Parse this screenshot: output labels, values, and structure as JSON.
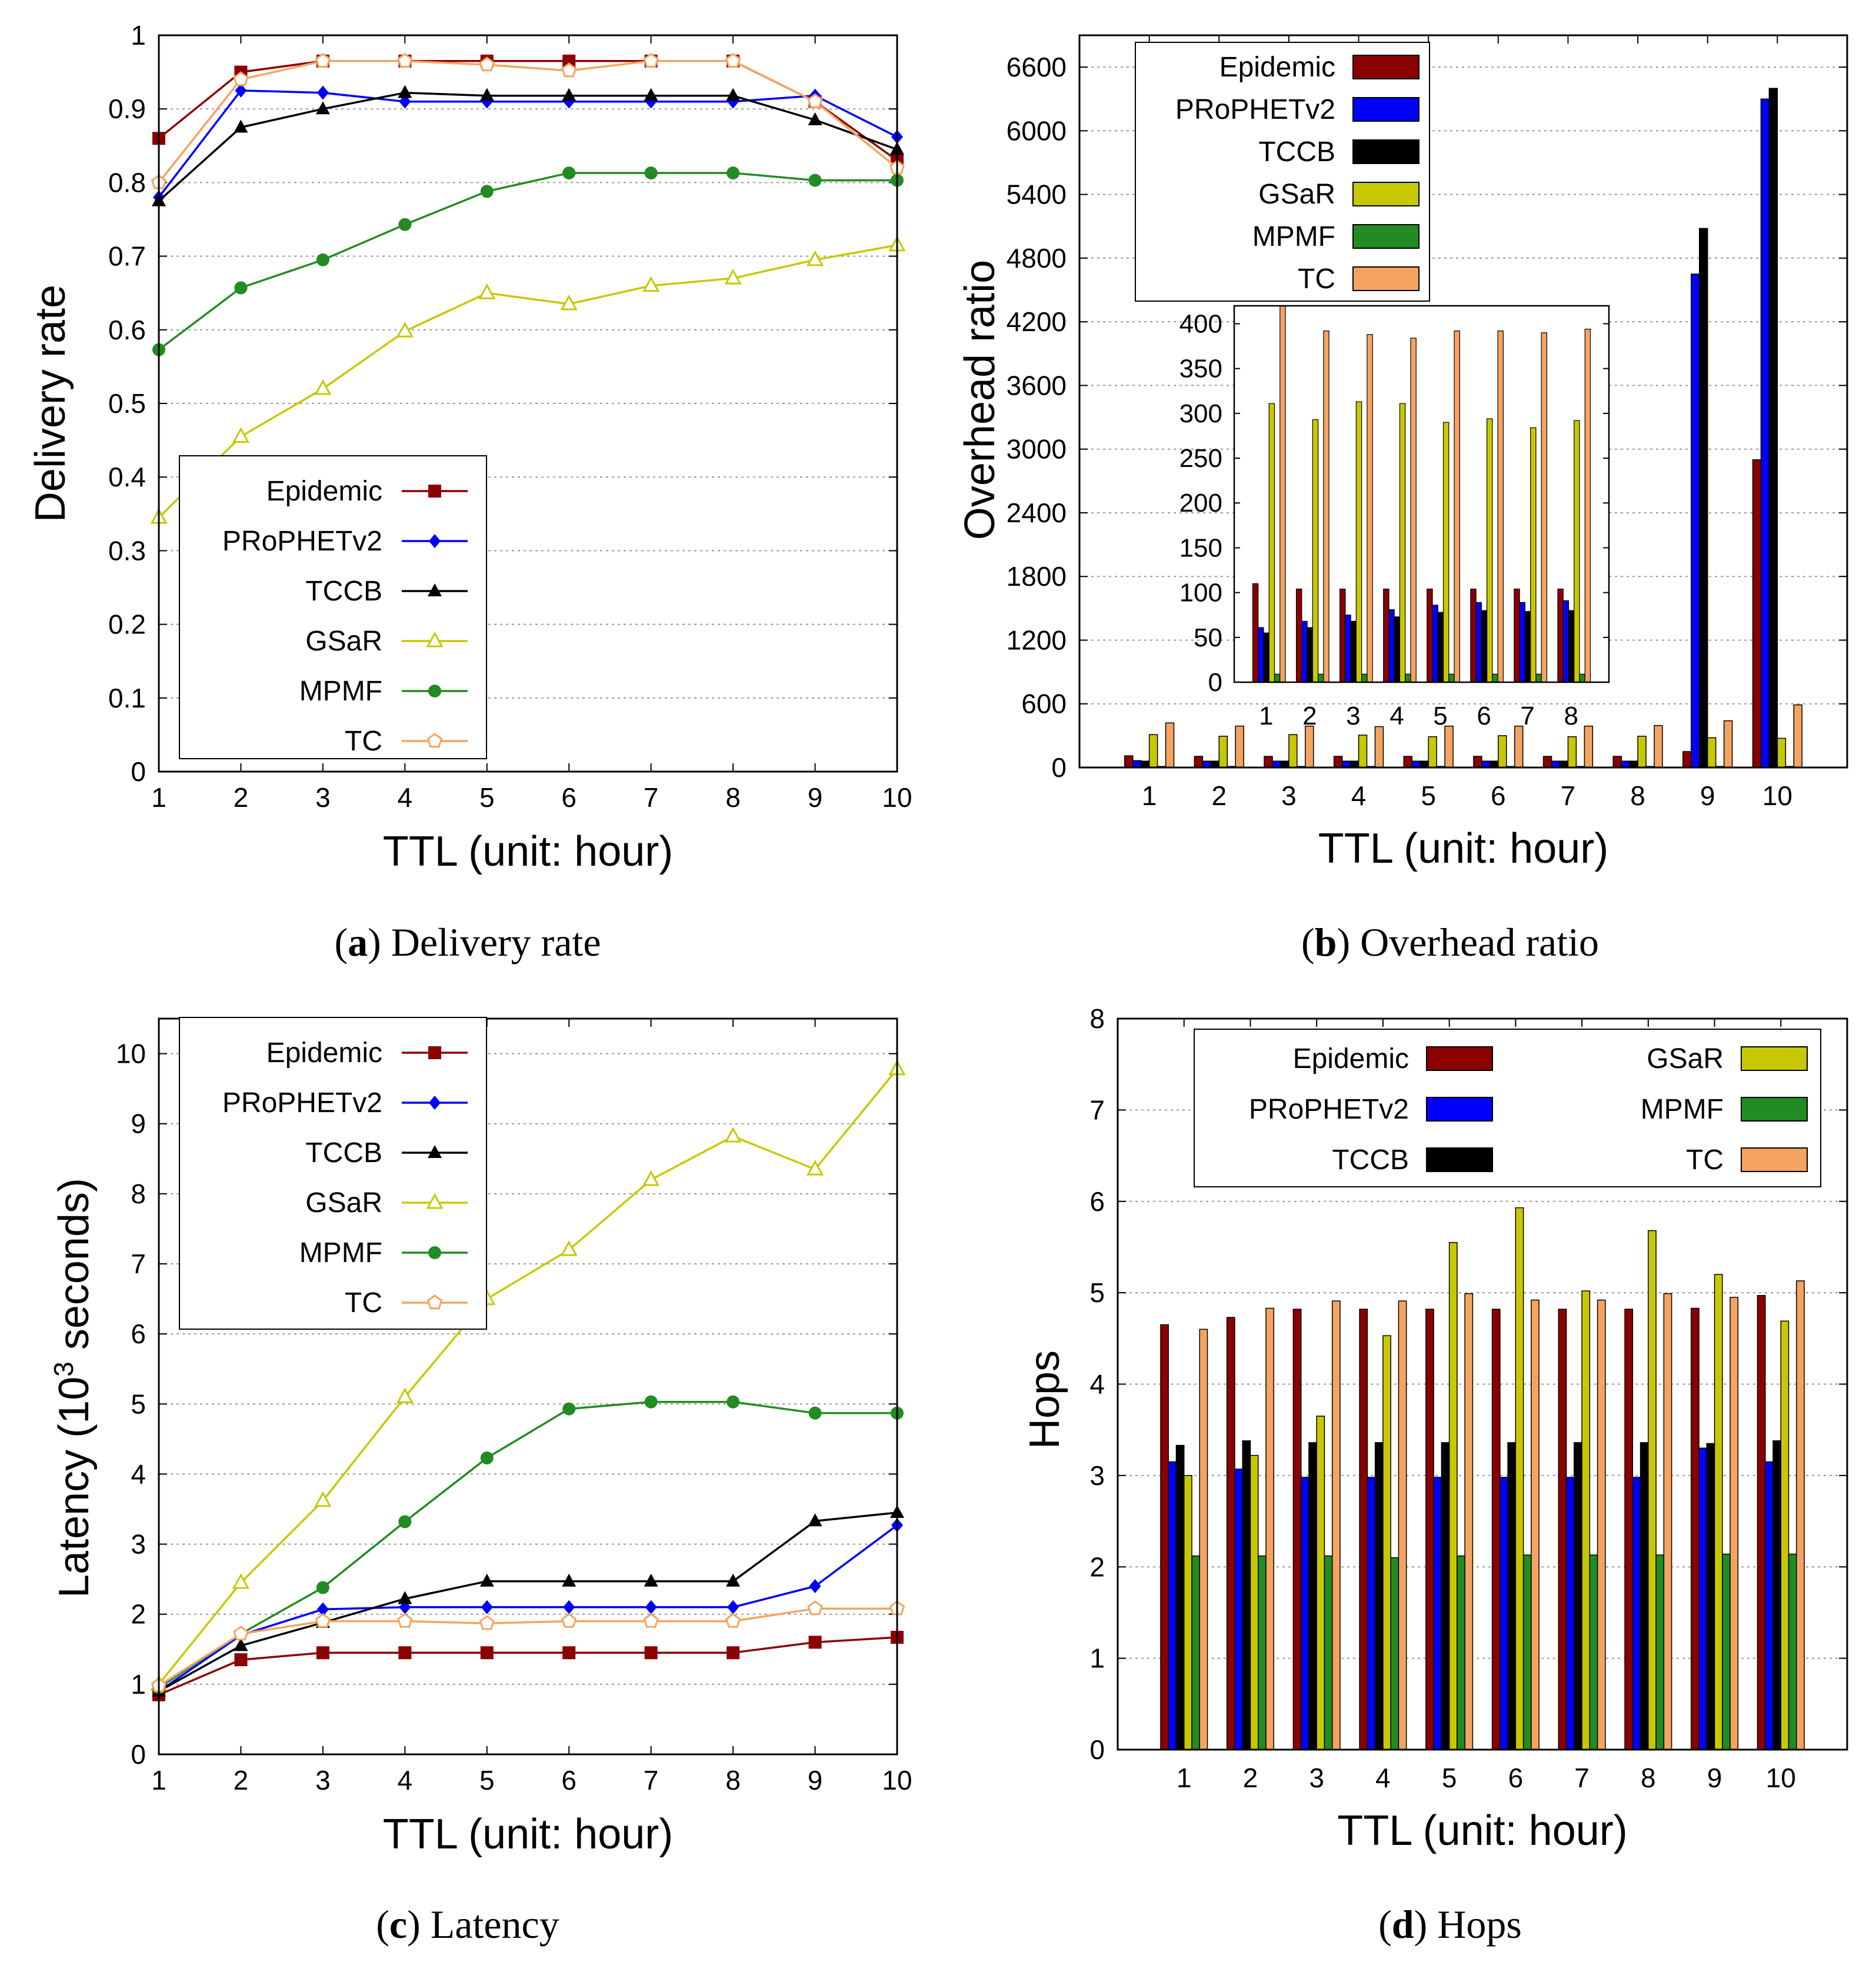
{
  "colors": {
    "Epidemic": "#8b0000",
    "PRoPHETv2": "#0000ff",
    "TCCB": "#000000",
    "GSaR": "#c8c800",
    "MPMF": "#228b22",
    "TC": "#f4a460"
  },
  "chart_data": [
    {
      "id": "a",
      "type": "line",
      "caption_letter": "a",
      "caption_text": "Delivery rate",
      "xlabel": "TTL (unit: hour)",
      "ylabel": "Delivery rate",
      "x": [
        1,
        2,
        3,
        4,
        5,
        6,
        7,
        8,
        9,
        10
      ],
      "xlim": [
        1,
        10
      ],
      "ylim": [
        0,
        1
      ],
      "yticks": [
        0,
        0.1,
        0.2,
        0.3,
        0.4,
        0.5,
        0.6,
        0.7,
        0.8,
        0.9,
        1
      ],
      "ytick_labels": [
        "0",
        "0.1",
        "0.2",
        "0.3",
        "0.4",
        "0.5",
        "0.6",
        "0.7",
        "0.8",
        "0.9",
        "1"
      ],
      "legend_position": "bottom-left",
      "series": [
        {
          "name": "Epidemic",
          "marker": "square",
          "values": [
            0.86,
            0.95,
            0.965,
            0.965,
            0.965,
            0.965,
            0.965,
            0.965,
            0.91,
            0.83
          ]
        },
        {
          "name": "PRoPHETv2",
          "marker": "diamond",
          "values": [
            0.78,
            0.925,
            0.922,
            0.91,
            0.91,
            0.91,
            0.91,
            0.91,
            0.918,
            0.862
          ]
        },
        {
          "name": "TCCB",
          "marker": "triangle",
          "values": [
            0.775,
            0.875,
            0.9,
            0.922,
            0.918,
            0.918,
            0.918,
            0.918,
            0.885,
            0.845
          ]
        },
        {
          "name": "GSaR",
          "marker": "triangle-open",
          "values": [
            0.345,
            0.455,
            0.52,
            0.598,
            0.65,
            0.635,
            0.66,
            0.67,
            0.695,
            0.715
          ]
        },
        {
          "name": "MPMF",
          "marker": "circle",
          "values": [
            0.573,
            0.657,
            0.695,
            0.743,
            0.788,
            0.813,
            0.813,
            0.813,
            0.803,
            0.803
          ]
        },
        {
          "name": "TC",
          "marker": "pentagon-open",
          "values": [
            0.8,
            0.94,
            0.965,
            0.965,
            0.96,
            0.952,
            0.965,
            0.965,
            0.91,
            0.82
          ]
        }
      ]
    },
    {
      "id": "b",
      "type": "bar",
      "caption_letter": "b",
      "caption_text": "Overhead ratio",
      "xlabel": "TTL (unit: hour)",
      "ylabel": "Overhead ratio",
      "categories": [
        "1",
        "2",
        "3",
        "4",
        "5",
        "6",
        "7",
        "8",
        "9",
        "10"
      ],
      "ylim": [
        0,
        6900
      ],
      "yticks": [
        0,
        600,
        1200,
        1800,
        2400,
        3000,
        3600,
        4200,
        4800,
        5400,
        6000,
        6600
      ],
      "ytick_labels": [
        "0",
        "600",
        "1200",
        "1800",
        "2400",
        "3000",
        "3600",
        "4200",
        "4800",
        "5400",
        "6000",
        "6600"
      ],
      "legend_position": "top-left",
      "series": [
        {
          "name": "Epidemic",
          "values": [
            110,
            105,
            105,
            105,
            105,
            105,
            105,
            105,
            150,
            2900
          ]
        },
        {
          "name": "PRoPHETv2",
          "values": [
            65,
            60,
            60,
            60,
            60,
            60,
            60,
            60,
            4650,
            6300
          ]
        },
        {
          "name": "TCCB",
          "values": [
            60,
            60,
            60,
            60,
            60,
            60,
            60,
            60,
            5080,
            6400
          ]
        },
        {
          "name": "GSaR",
          "values": [
            310,
            295,
            310,
            305,
            290,
            300,
            290,
            295,
            280,
            275
          ]
        },
        {
          "name": "MPMF",
          "values": [
            10,
            10,
            10,
            10,
            10,
            10,
            10,
            10,
            10,
            10
          ]
        },
        {
          "name": "TC",
          "values": [
            420,
            390,
            390,
            385,
            390,
            390,
            390,
            395,
            440,
            590
          ]
        }
      ],
      "inset": {
        "categories": [
          "1",
          "2",
          "3",
          "4",
          "5",
          "6",
          "7",
          "8"
        ],
        "ylim": [
          0,
          420
        ],
        "yticks": [
          0,
          50,
          100,
          150,
          200,
          250,
          300,
          350,
          400
        ],
        "ytick_labels": [
          "0",
          "50",
          "100",
          "150",
          "200",
          "250",
          "300",
          "350",
          "400"
        ],
        "series": [
          {
            "name": "Epidemic",
            "values": [
              110,
              104,
              104,
              104,
              104,
              104,
              104,
              104
            ]
          },
          {
            "name": "PRoPHETv2",
            "values": [
              61,
              68,
              75,
              81,
              86,
              89,
              89,
              91
            ]
          },
          {
            "name": "TCCB",
            "values": [
              55,
              61,
              68,
              73,
              78,
              80,
              79,
              80
            ]
          },
          {
            "name": "GSaR",
            "values": [
              311,
              293,
              313,
              311,
              290,
              294,
              284,
              292
            ]
          },
          {
            "name": "MPMF",
            "values": [
              9,
              9,
              9,
              9,
              9,
              9,
              9,
              9
            ]
          },
          {
            "name": "TC",
            "values": [
              420,
              392,
              388,
              384,
              392,
              392,
              390,
              394
            ]
          }
        ]
      }
    },
    {
      "id": "c",
      "type": "line",
      "caption_letter": "c",
      "caption_text": "Latency",
      "xlabel": "TTL (unit: hour)",
      "ylabel_main": "Latency (10",
      "ylabel_sup": "3",
      "ylabel_tail": " seconds)",
      "x": [
        1,
        2,
        3,
        4,
        5,
        6,
        7,
        8,
        9,
        10
      ],
      "xlim": [
        1,
        10
      ],
      "ylim": [
        0,
        10.5
      ],
      "yticks": [
        0,
        1,
        2,
        3,
        4,
        5,
        6,
        7,
        8,
        9,
        10
      ],
      "ytick_labels": [
        "0",
        "1",
        "2",
        "3",
        "4",
        "5",
        "6",
        "7",
        "8",
        "9",
        "10"
      ],
      "legend_position": "top-left",
      "series": [
        {
          "name": "Epidemic",
          "marker": "square",
          "values": [
            0.85,
            1.35,
            1.45,
            1.45,
            1.45,
            1.45,
            1.45,
            1.45,
            1.6,
            1.67
          ]
        },
        {
          "name": "PRoPHETv2",
          "marker": "diamond",
          "values": [
            0.9,
            1.7,
            2.07,
            2.1,
            2.1,
            2.1,
            2.1,
            2.1,
            2.4,
            3.27
          ]
        },
        {
          "name": "TCCB",
          "marker": "triangle",
          "values": [
            0.9,
            1.55,
            1.88,
            2.22,
            2.47,
            2.47,
            2.47,
            2.47,
            3.33,
            3.45
          ]
        },
        {
          "name": "GSaR",
          "marker": "triangle-open",
          "values": [
            1.0,
            2.45,
            3.62,
            5.1,
            6.5,
            7.2,
            8.2,
            8.82,
            8.35,
            9.78
          ]
        },
        {
          "name": "MPMF",
          "marker": "circle",
          "values": [
            0.95,
            1.72,
            2.38,
            3.32,
            4.23,
            4.93,
            5.03,
            5.03,
            4.87,
            4.87
          ]
        },
        {
          "name": "TC",
          "marker": "pentagon-open",
          "values": [
            0.98,
            1.72,
            1.9,
            1.9,
            1.87,
            1.9,
            1.9,
            1.9,
            2.08,
            2.08
          ]
        }
      ]
    },
    {
      "id": "d",
      "type": "bar",
      "caption_letter": "d",
      "caption_text": "Hops",
      "xlabel": "TTL (unit: hour)",
      "ylabel": "Hops",
      "categories": [
        "1",
        "2",
        "3",
        "4",
        "5",
        "6",
        "7",
        "8",
        "9",
        "10"
      ],
      "ylim": [
        0,
        8
      ],
      "yticks": [
        0,
        1,
        2,
        3,
        4,
        5,
        6,
        7,
        8
      ],
      "ytick_labels": [
        "0",
        "1",
        "2",
        "3",
        "4",
        "5",
        "6",
        "7",
        "8"
      ],
      "legend_position": "top",
      "series": [
        {
          "name": "Epidemic",
          "values": [
            4.65,
            4.73,
            4.82,
            4.82,
            4.82,
            4.82,
            4.82,
            4.82,
            4.83,
            4.97
          ]
        },
        {
          "name": "PRoPHETv2",
          "values": [
            3.15,
            3.07,
            2.98,
            2.98,
            2.98,
            2.98,
            2.98,
            2.98,
            3.3,
            3.15
          ]
        },
        {
          "name": "TCCB",
          "values": [
            3.33,
            3.38,
            3.36,
            3.36,
            3.36,
            3.36,
            3.36,
            3.36,
            3.35,
            3.38
          ]
        },
        {
          "name": "GSaR",
          "values": [
            3.0,
            3.22,
            3.65,
            4.53,
            5.55,
            5.93,
            5.02,
            5.68,
            5.2,
            4.69
          ]
        },
        {
          "name": "MPMF",
          "values": [
            2.12,
            2.12,
            2.12,
            2.1,
            2.12,
            2.13,
            2.13,
            2.13,
            2.14,
            2.14
          ]
        },
        {
          "name": "TC",
          "values": [
            4.6,
            4.83,
            4.91,
            4.91,
            4.99,
            4.92,
            4.92,
            4.99,
            4.95,
            5.13
          ]
        }
      ]
    }
  ]
}
